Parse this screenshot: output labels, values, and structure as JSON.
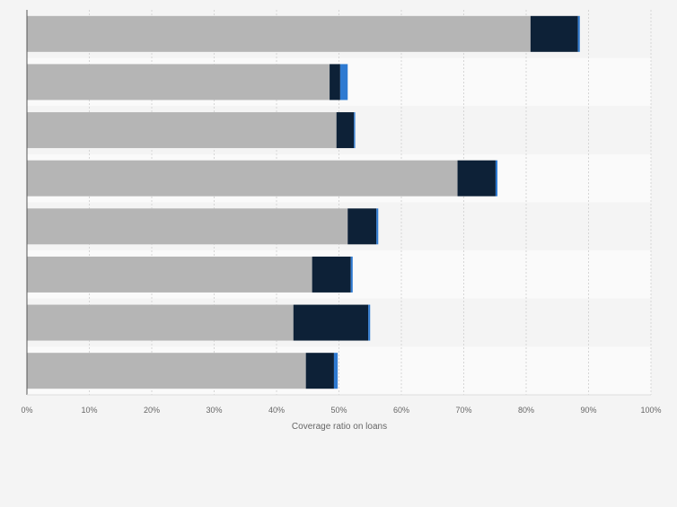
{
  "chart_data": {
    "type": "bar",
    "orientation": "horizontal",
    "stacked": true,
    "title": "",
    "xlabel": "Coverage ratio on loans",
    "ylabel": "",
    "xlim": [
      0,
      1
    ],
    "x_tick_values": [
      0,
      0.1,
      0.2,
      0.3,
      0.4,
      0.5,
      0.6,
      0.7,
      0.8,
      0.9,
      1.0
    ],
    "x_tick_labels": [
      "0%",
      "10%",
      "20%",
      "30%",
      "40%",
      "50%",
      "60%",
      "70%",
      "80%",
      "90%",
      "100%"
    ],
    "grid": true,
    "legend": "none",
    "categories": [
      "",
      "",
      "",
      "",
      "",
      "",
      "",
      ""
    ],
    "series": [
      {
        "color": "#b5b5b5",
        "values": [
          0.807,
          0.485,
          0.496,
          0.69,
          0.514,
          0.457,
          0.427,
          0.447
        ]
      },
      {
        "color": "#0d2137",
        "values": [
          0.076,
          0.017,
          0.028,
          0.061,
          0.046,
          0.062,
          0.12,
          0.045
        ]
      },
      {
        "color": "#2e7ad1",
        "values": [
          0.003,
          0.012,
          0.002,
          0.003,
          0.003,
          0.003,
          0.003,
          0.006
        ]
      }
    ]
  }
}
